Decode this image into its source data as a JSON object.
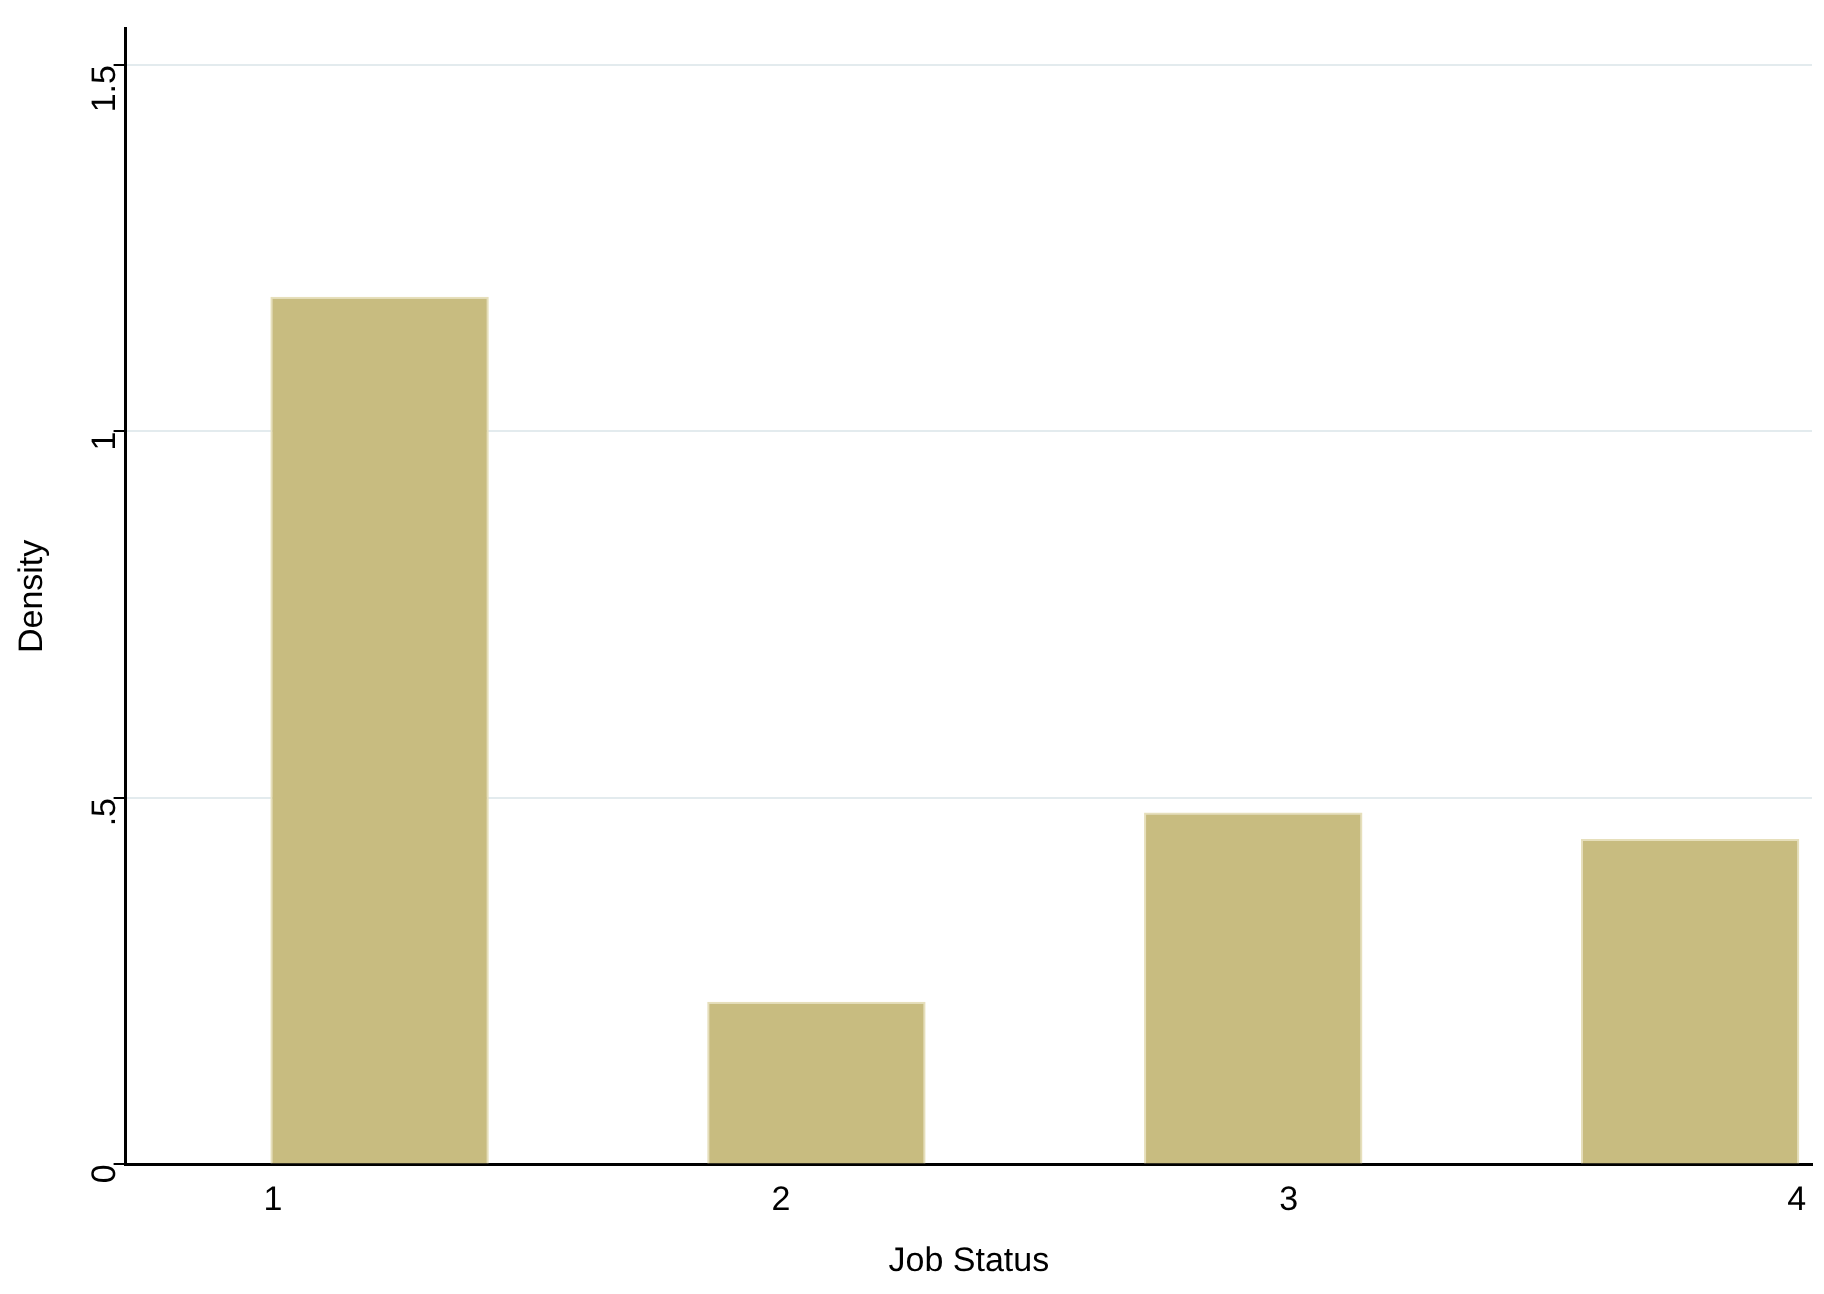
{
  "chart_data": {
    "type": "bar",
    "xlabel": "Job Status",
    "ylabel": "Density",
    "x": [
      1.21,
      2.07,
      2.93,
      3.79
    ],
    "values": [
      1.184,
      0.222,
      0.48,
      0.444
    ],
    "color": "#c8bc80",
    "xlim": [
      0.71,
      4.03
    ],
    "xticks": [
      1,
      2,
      3,
      4
    ],
    "ylim": [
      0,
      1.55
    ],
    "yticks": [
      0,
      {
        "value": 0.5,
        "label": ".5"
      },
      1,
      1.5
    ],
    "grid": "y",
    "legend": false
  }
}
